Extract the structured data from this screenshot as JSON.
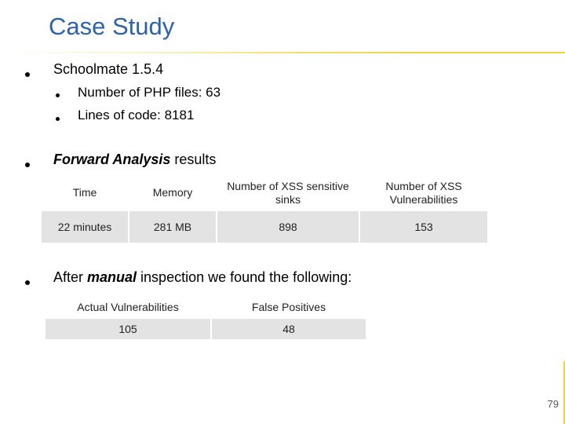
{
  "slide": {
    "title": "Case Study",
    "page_number": "79",
    "accent_color": "#f0d443",
    "title_color": "#2c62b4"
  },
  "bullets": {
    "b1": {
      "text": "Schoolmate 1.5.4"
    },
    "b1_sub": [
      {
        "text": "Number of PHP files: 63"
      },
      {
        "text": "Lines of code: 8181"
      }
    ],
    "b2": {
      "emphasis": "Forward Analysis",
      "rest": " results"
    },
    "b3": {
      "before": "After ",
      "emphasis": "manual",
      "after": " inspection we found the following:"
    }
  },
  "table_forward": {
    "headers": [
      "Time",
      "Memory",
      "Number of XSS sensitive sinks",
      "Number of XSS Vulnerabilities"
    ],
    "row": [
      "22 minutes",
      "281 MB",
      "898",
      "153"
    ]
  },
  "table_manual": {
    "headers": [
      "Actual Vulnerabilities",
      "False Positives"
    ],
    "row": [
      "105",
      "48"
    ]
  }
}
